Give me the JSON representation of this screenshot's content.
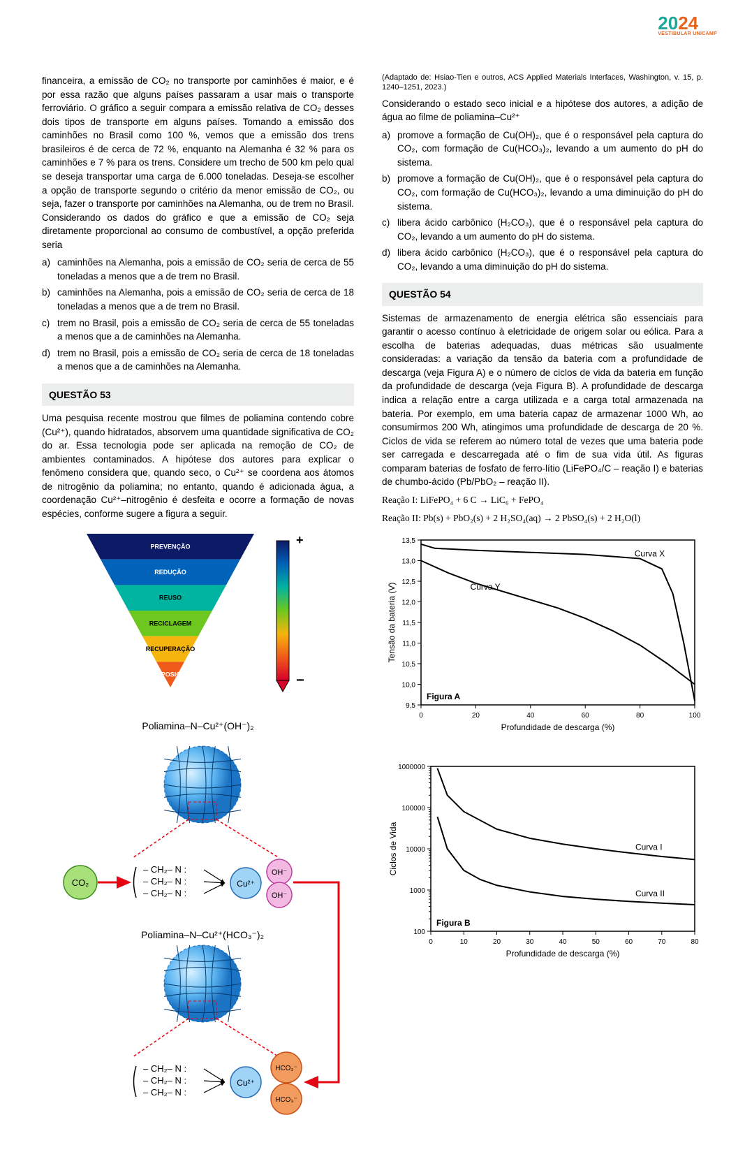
{
  "logo": {
    "part1": "20",
    "part2": "24",
    "sub": "VESTIBULAR   UNICAMP"
  },
  "q52_intro": "financeira, a emissão de CO₂ no transporte por caminhões é maior, e é por essa razão que alguns países passaram a usar mais o transporte ferroviário. O gráfico a seguir compara a emissão relativa de CO₂ desses dois tipos de transporte em alguns países. Tomando a emissão dos caminhões no Brasil como 100 %, vemos que a emissão dos trens brasileiros é de cerca de 72 %, enquanto na Alemanha é 32 % para os caminhões e 7 % para os trens. Considere um trecho de 500 km pelo qual se deseja transportar uma carga de 6.000 toneladas. Deseja-se escolher a opção de transporte segundo o critério da menor emissão de CO₂, ou seja, fazer o transporte por caminhões na Alemanha, ou de trem no Brasil. Considerando os dados do gráfico e que a emissão de CO₂ seja diretamente proporcional ao consumo de combustível, a opção preferida seria",
  "q52": {
    "a": "caminhões na Alemanha, pois a emissão de CO₂ seria de cerca de 55 toneladas a menos que a de trem no Brasil.",
    "b": "caminhões na Alemanha, pois a emissão de CO₂ seria de cerca de 18 toneladas a menos que a de trem no Brasil.",
    "c": "trem no Brasil, pois a emissão de CO₂ seria de cerca de 55 toneladas a menos que a de caminhões na Alemanha.",
    "d": "trem no Brasil, pois a emissão de CO₂ seria de cerca de 18 toneladas a menos que a de caminhões na Alemanha."
  },
  "q53_title": "QUESTÃO 53",
  "q53_text": "Uma pesquisa recente mostrou que filmes de poliamina contendo cobre (Cu²⁺), quando hidratados, absorvem uma quantidade significativa de CO₂ do ar. Essa tecnologia pode ser aplicada na remoção de CO₂ de ambientes contaminados. A hipótese dos autores para explicar o fenômeno considera que, quando seco, o Cu²⁺ se coordena aos átomos de nitrogênio da poliamina; no entanto, quando é adicionada água, a coordenação Cu²⁺–nitrogênio é desfeita e ocorre a formação de novas espécies, conforme sugere a figura a seguir.",
  "q53_caption": "(Adaptado de: Hsiao-Tien e outros, ACS Applied Materials Interfaces, Washington, v. 15, p. 1240–1251, 2023.)",
  "q53_choices_intro": "Considerando o estado seco inicial e a hipótese dos autores, a adição de água ao filme de poliamina–Cu²⁺",
  "q53": {
    "a": "promove a formação de Cu(OH)₂, que é o responsável pela captura do CO₂, com formação de Cu(HCO₃)₂, levando a um aumento do pH do sistema.",
    "b": "promove a formação de Cu(OH)₂, que é o responsável pela captura do CO₂, com formação de Cu(HCO₃)₂, levando a uma diminuição do pH do sistema.",
    "c": "libera ácido carbônico (H₂CO₃), que é o responsável pela captura do CO₂, levando a um aumento do pH do sistema.",
    "d": "libera ácido carbônico (H₂CO₃), que é o responsável pela captura do CO₂, levando a uma diminuição do pH do sistema."
  },
  "q54_title": "QUESTÃO 54",
  "q54_text": "Sistemas de armazenamento de energia elétrica são essenciais para garantir o acesso contínuo à eletricidade de origem solar ou eólica. Para a escolha de baterias adequadas, duas métricas são usualmente consideradas: a variação da tensão da bateria com a profundidade de descarga (veja Figura A) e o número de ciclos de vida da bateria em função da profundidade de descarga (veja Figura B). A profundidade de descarga indica a relação entre a carga utilizada e a carga total armazenada na bateria. Por exemplo, em uma bateria capaz de armazenar 1000 Wh, ao consumirmos 200 Wh, atingimos uma profundidade de descarga de 20 %. Ciclos de vida se referem ao número total de vezes que uma bateria pode ser carregada e descarregada até o fim de sua vida útil. As figuras comparam baterias de fosfato de ferro-lítio (LiFePO₄/C – reação I) e baterias de chumbo-ácido (Pb/PbO₂ – reação II).",
  "q54_eq1": "Reação I:   LiFePO₄ + 6 C  →  LiC₆ + FePO₄",
  "q54_eq2": "Reação II:  Pb(s) + PbO₂(s) + 2 H₂SO₄(aq)  →  2 PbSO₄(s) + 2 H₂O(l)",
  "triangle": {
    "labels": [
      "PREVENÇÃO",
      "REDUÇÃO",
      "REUSO",
      "RECICLAGEM",
      "RECUPERAÇÃO",
      "DISPOSIÇÃO"
    ],
    "colors": [
      "#0d1a66",
      "#0062b8",
      "#00b3a0",
      "#6ec71e",
      "#f6b40e",
      "#f05a1a",
      "#d6002a"
    ],
    "scale_plus": "+",
    "scale_minus": "−",
    "label_fontsize": 9
  },
  "chem": {
    "title1": "Poliamina–N–Cu²⁺(OH⁻)₂",
    "title2": "Poliamina–N–Cu²⁺(HCO₃⁻)₂",
    "co2": "CO₂",
    "cu": "Cu²⁺",
    "oh": "OH⁻",
    "hco3": "HCO₃⁻",
    "line1": "– CH₂– N :",
    "line2": "– CH₂– N :",
    "line3": "– CH₂– N :"
  },
  "figA": {
    "title": "Figura A",
    "xlabel": "Profundidade de descarga (%)",
    "ylabel": "Tensão da bateria (V)",
    "xlim": [
      0,
      100
    ],
    "xtick_step": 20,
    "ylim": [
      9.5,
      13.5
    ],
    "yticks": [
      9.5,
      10.0,
      10.5,
      11.0,
      11.5,
      12.0,
      12.5,
      13.0,
      13.5
    ],
    "curveX_label": "Curva X",
    "curveY_label": "Curva Y",
    "curveX": [
      [
        0,
        13.4
      ],
      [
        5,
        13.3
      ],
      [
        20,
        13.25
      ],
      [
        40,
        13.2
      ],
      [
        60,
        13.15
      ],
      [
        80,
        13.05
      ],
      [
        88,
        12.8
      ],
      [
        92,
        12.2
      ],
      [
        96,
        11.0
      ],
      [
        100,
        9.6
      ]
    ],
    "curveY": [
      [
        0,
        13.0
      ],
      [
        10,
        12.7
      ],
      [
        20,
        12.45
      ],
      [
        30,
        12.25
      ],
      [
        40,
        12.05
      ],
      [
        50,
        11.85
      ],
      [
        60,
        11.6
      ],
      [
        70,
        11.3
      ],
      [
        80,
        10.95
      ],
      [
        90,
        10.5
      ],
      [
        100,
        10.0
      ]
    ],
    "line_color": "#000000",
    "line_width": 2,
    "bg": "#ffffff",
    "grid": "#cfcfcf",
    "label_fontsize": 12,
    "tick_fontsize": 10
  },
  "figB": {
    "title": "Figura B",
    "xlabel": "Profundidade de descarga (%)",
    "ylabel": "Ciclos de Vida",
    "xlim": [
      0,
      80
    ],
    "xtick_step": 10,
    "yticks": [
      100,
      1000,
      10000,
      100000,
      1000000
    ],
    "curveI_label": "Curva I",
    "curveII_label": "Curva II",
    "curveI": [
      [
        2,
        900000
      ],
      [
        5,
        200000
      ],
      [
        10,
        80000
      ],
      [
        20,
        30000
      ],
      [
        30,
        18000
      ],
      [
        40,
        13000
      ],
      [
        50,
        10000
      ],
      [
        60,
        8000
      ],
      [
        70,
        6500
      ],
      [
        80,
        5500
      ]
    ],
    "curveII": [
      [
        2,
        60000
      ],
      [
        5,
        10000
      ],
      [
        10,
        3000
      ],
      [
        15,
        1800
      ],
      [
        20,
        1300
      ],
      [
        30,
        900
      ],
      [
        40,
        700
      ],
      [
        50,
        600
      ],
      [
        60,
        530
      ],
      [
        70,
        480
      ],
      [
        80,
        440
      ]
    ],
    "line_color": "#000000",
    "line_width": 2,
    "bg": "#ffffff",
    "grid": "#cfcfcf",
    "label_fontsize": 12,
    "tick_fontsize": 10
  }
}
